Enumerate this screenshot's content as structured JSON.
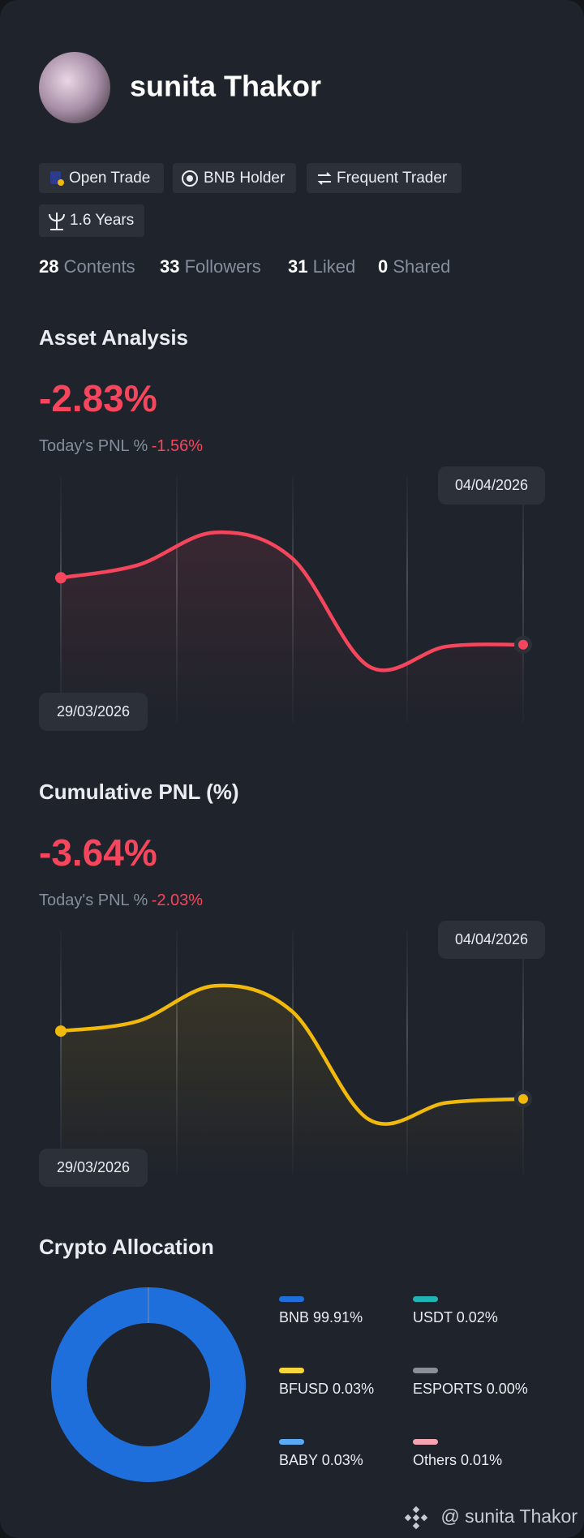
{
  "profile": {
    "name": "sunita Thakor",
    "badges": [
      "Open Trade",
      "BNB Holder",
      "Frequent Trader",
      "1.6 Years"
    ],
    "stats": [
      {
        "count": 28,
        "label": "Contents"
      },
      {
        "count": 33,
        "label": "Followers"
      },
      {
        "count": 31,
        "label": "Liked"
      },
      {
        "count": 0,
        "label": "Shared"
      }
    ]
  },
  "chart_data": [
    {
      "type": "line",
      "title": "Asset Analysis",
      "headline": "-2.83%",
      "pnl_label": "Today's PNL %",
      "pnl_value": "-1.56%",
      "categories": [
        "29/03/2026",
        null,
        null,
        null,
        null,
        null,
        "04/04/2026"
      ],
      "values": [
        0,
        0.54,
        1.92,
        0.83,
        -3.75,
        -2.91,
        -2.83
      ],
      "color": "#f6465d",
      "ylim": [
        -6.1,
        4.3
      ]
    },
    {
      "type": "line",
      "title": "Cumulative PNL (%)",
      "headline": "-3.64%",
      "pnl_label": "Today's PNL %",
      "pnl_value": "-2.03%",
      "categories": [
        "29/03/2026",
        null,
        null,
        null,
        null,
        null,
        "04/04/2026"
      ],
      "values": [
        0,
        0.53,
        2.43,
        1.06,
        -4.75,
        -3.85,
        -3.64
      ],
      "color": "#f0b90b",
      "ylim": [
        -7.7,
        5.4
      ]
    },
    {
      "type": "pie",
      "title": "Crypto Allocation",
      "categories": [
        "BNB",
        "BFUSD",
        "BABY",
        "USDT",
        "ESPORTS",
        "Others"
      ],
      "values": [
        99.91,
        0.03,
        0.03,
        0.02,
        0,
        0.01
      ],
      "value_labels": [
        "99.91%",
        "0.03%",
        "0.03%",
        "0.02%",
        "0.00%",
        "0.01%"
      ],
      "colors": [
        "#1e6fdb",
        "#f5d63d",
        "#5aa9f5",
        "#1fb5b5",
        "#8a8f99",
        "#f4a4b0"
      ]
    }
  ],
  "footer": "@ sunita Thakor"
}
